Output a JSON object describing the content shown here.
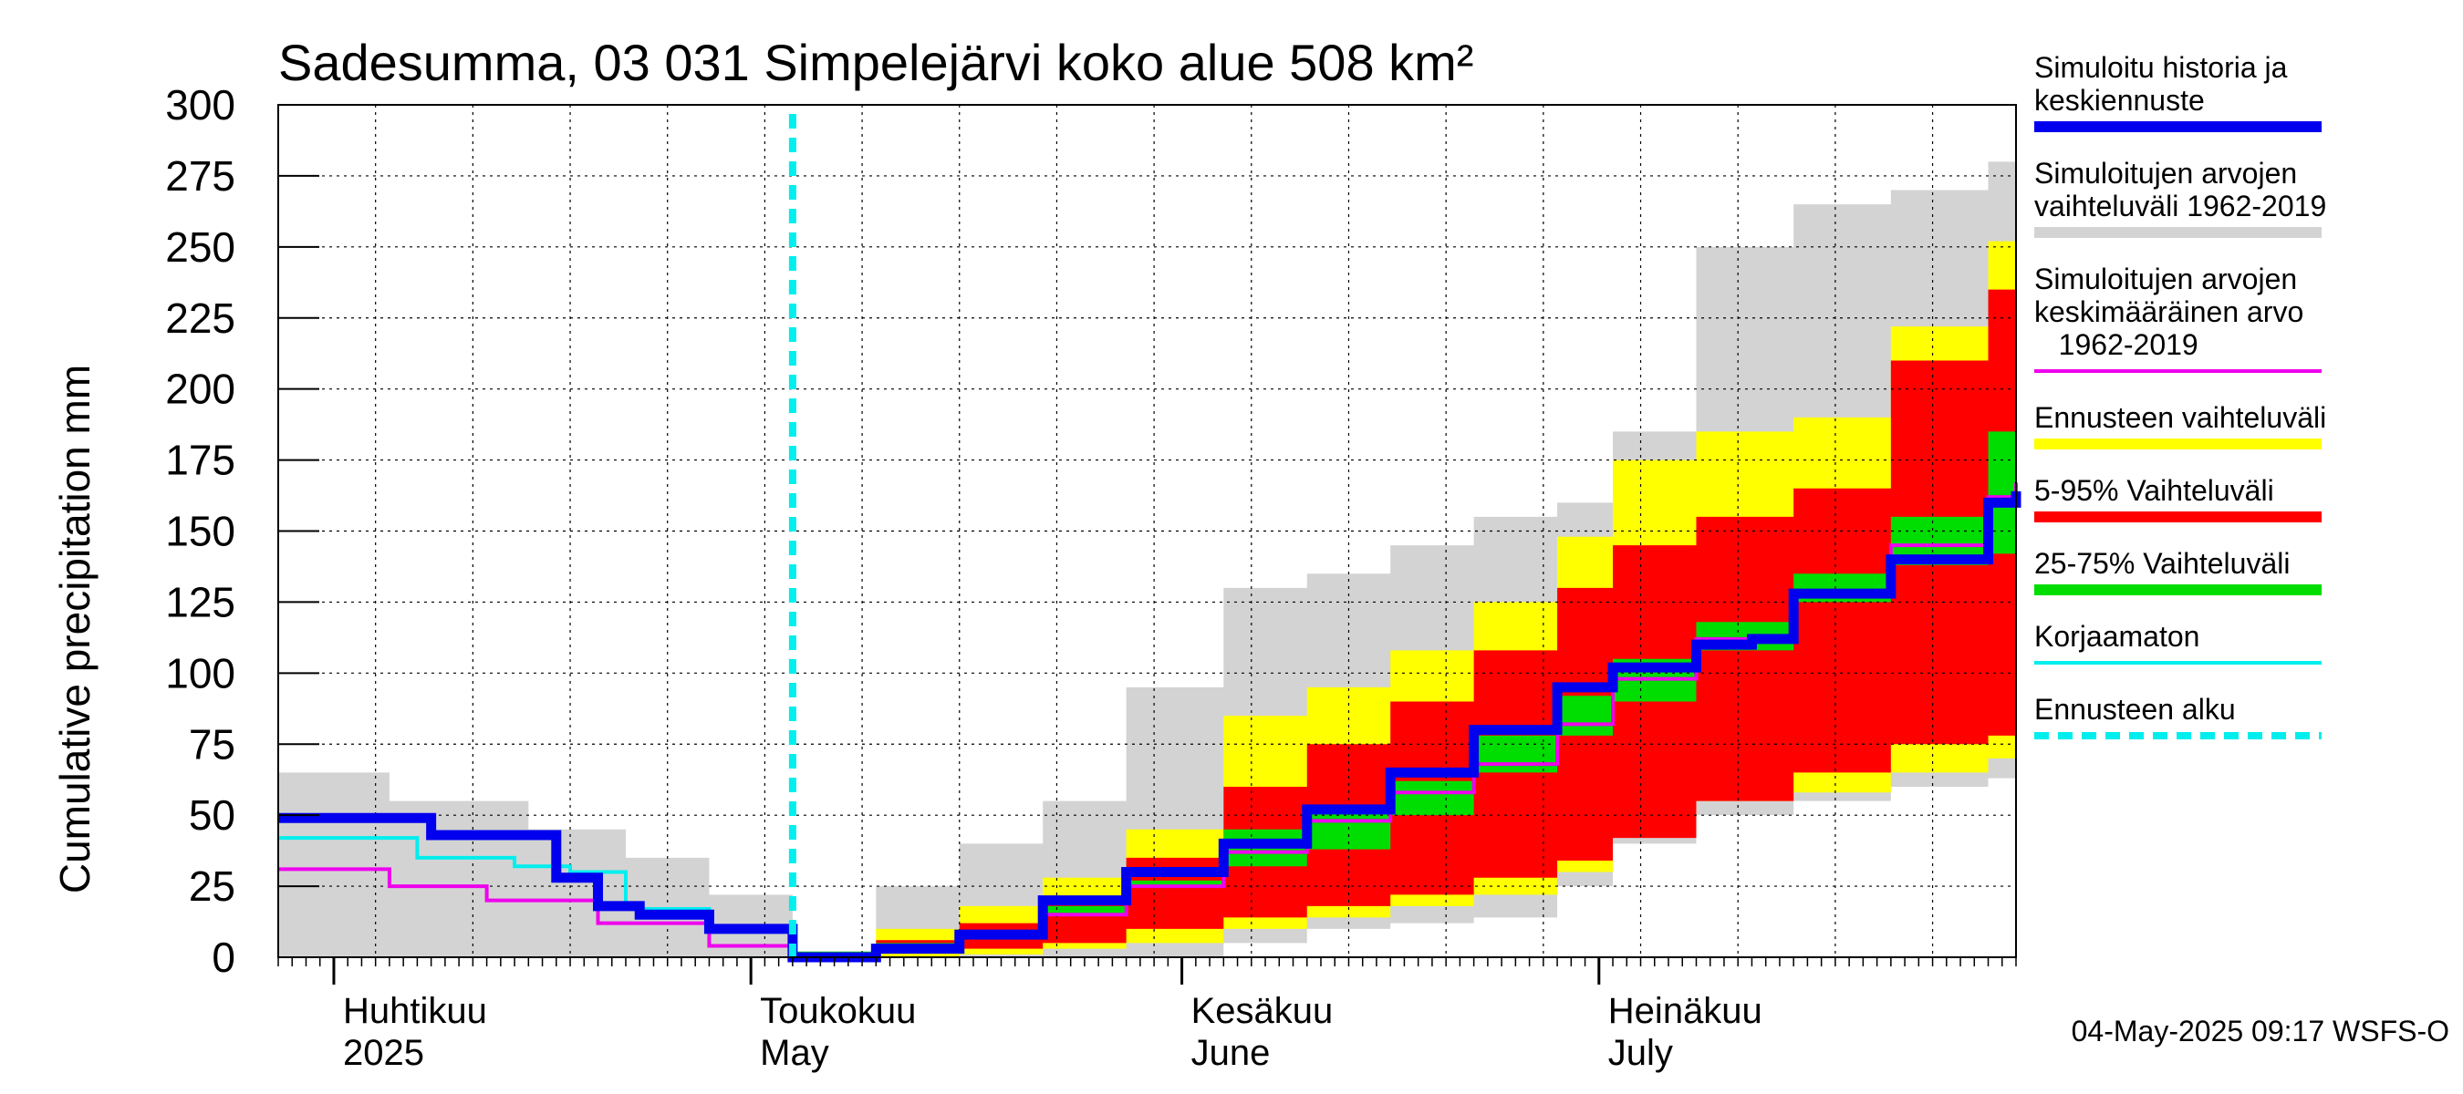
{
  "chart_data": {
    "type": "area",
    "title": "Sadesumma, 03 031 Simpelejärvi koko alue 508 km²",
    "ylabel": "Cumulative precipitation   mm",
    "ylim": [
      0,
      300
    ],
    "yticks": [
      0,
      25,
      50,
      75,
      100,
      125,
      150,
      175,
      200,
      225,
      250,
      275,
      300
    ],
    "xlim": [
      "2025-03-28",
      "2025-07-31"
    ],
    "month_labels": [
      {
        "date": "2025-04-01",
        "label1": "Huhtikuu",
        "label2": "2025"
      },
      {
        "date": "2025-05-01",
        "label1": "Toukokuu",
        "label2": "May"
      },
      {
        "date": "2025-06-01",
        "label1": "Kesäkuu",
        "label2": "June"
      },
      {
        "date": "2025-07-01",
        "label1": "Heinäkuu",
        "label2": "July"
      }
    ],
    "forecast_start": "2025-05-04",
    "series": [
      {
        "name": "Simuloitujen arvojen vaihteluväli 1962-2019",
        "kind": "band",
        "color": "#d3d3d3",
        "x": [
          "2025-03-28",
          "2025-04-05",
          "2025-04-15",
          "2025-04-22",
          "2025-04-28",
          "2025-05-04",
          "2025-05-10",
          "2025-05-16",
          "2025-05-22",
          "2025-05-28",
          "2025-06-04",
          "2025-06-10",
          "2025-06-16",
          "2025-06-22",
          "2025-06-28",
          "2025-07-02",
          "2025-07-08",
          "2025-07-15",
          "2025-07-22",
          "2025-07-29",
          "2025-07-31"
        ],
        "low": [
          0,
          0,
          0,
          0,
          0,
          0,
          0,
          0,
          0,
          0,
          0,
          5,
          10,
          12,
          14,
          25,
          40,
          50,
          55,
          60,
          63
        ],
        "high": [
          65,
          55,
          45,
          35,
          22,
          2,
          25,
          40,
          55,
          95,
          130,
          135,
          145,
          155,
          160,
          185,
          250,
          265,
          270,
          280,
          286
        ]
      },
      {
        "name": "Ennusteen vaihteluväli",
        "kind": "band",
        "color": "#ffff00",
        "x": [
          "2025-05-04",
          "2025-05-10",
          "2025-05-16",
          "2025-05-22",
          "2025-05-28",
          "2025-06-04",
          "2025-06-10",
          "2025-06-16",
          "2025-06-22",
          "2025-06-28",
          "2025-07-02",
          "2025-07-08",
          "2025-07-15",
          "2025-07-22",
          "2025-07-29",
          "2025-07-31"
        ],
        "low": [
          0,
          0,
          0,
          1,
          3,
          5,
          10,
          14,
          18,
          22,
          30,
          45,
          55,
          58,
          65,
          70
        ],
        "high": [
          0,
          10,
          18,
          28,
          45,
          85,
          95,
          108,
          125,
          148,
          175,
          185,
          190,
          222,
          252,
          270
        ]
      },
      {
        "name": "5-95% Vaihteluväli",
        "kind": "band",
        "color": "#ff0000",
        "x": [
          "2025-05-04",
          "2025-05-10",
          "2025-05-16",
          "2025-05-22",
          "2025-05-28",
          "2025-06-04",
          "2025-06-10",
          "2025-06-16",
          "2025-06-22",
          "2025-06-28",
          "2025-07-02",
          "2025-07-08",
          "2025-07-15",
          "2025-07-22",
          "2025-07-29",
          "2025-07-31"
        ],
        "low": [
          0,
          1,
          2,
          3,
          5,
          10,
          14,
          18,
          22,
          28,
          34,
          42,
          55,
          65,
          75,
          78
        ],
        "high": [
          0,
          6,
          12,
          20,
          35,
          60,
          75,
          90,
          108,
          130,
          145,
          155,
          165,
          210,
          235,
          250
        ]
      },
      {
        "name": "25-75% Vaihteluväli",
        "kind": "band",
        "color": "#00dd00",
        "x": [
          "2025-05-04",
          "2025-05-10",
          "2025-05-16",
          "2025-05-22",
          "2025-05-28",
          "2025-06-04",
          "2025-06-10",
          "2025-06-16",
          "2025-06-22",
          "2025-06-28",
          "2025-07-02",
          "2025-07-08",
          "2025-07-15",
          "2025-07-22",
          "2025-07-29",
          "2025-07-31"
        ],
        "low": [
          0,
          2,
          5,
          8,
          15,
          27,
          32,
          38,
          50,
          65,
          78,
          90,
          108,
          125,
          138,
          142
        ],
        "high": [
          0,
          4,
          9,
          18,
          25,
          45,
          52,
          62,
          78,
          92,
          105,
          118,
          135,
          155,
          185,
          210
        ]
      },
      {
        "name": "Simuloitujen arvojen keskimääräinen arvo 1962-2019",
        "kind": "line",
        "color": "#ee00ee",
        "x": [
          "2025-03-28",
          "2025-04-05",
          "2025-04-12",
          "2025-04-20",
          "2025-04-28",
          "2025-05-04",
          "2025-05-10",
          "2025-05-16",
          "2025-05-22",
          "2025-05-28",
          "2025-06-04",
          "2025-06-10",
          "2025-06-16",
          "2025-06-22",
          "2025-06-28",
          "2025-07-02",
          "2025-07-08",
          "2025-07-15",
          "2025-07-22",
          "2025-07-29",
          "2025-07-31"
        ],
        "y": [
          31,
          25,
          20,
          12,
          4,
          0,
          3,
          7,
          15,
          25,
          37,
          48,
          58,
          68,
          82,
          98,
          112,
          128,
          145,
          162,
          167
        ]
      },
      {
        "name": "Korjaamaton",
        "kind": "line",
        "color": "#00eeee",
        "x": [
          "2025-03-28",
          "2025-04-04",
          "2025-04-07",
          "2025-04-14",
          "2025-04-18",
          "2025-04-22",
          "2025-04-28",
          "2025-05-04"
        ],
        "y": [
          42,
          42,
          35,
          32,
          30,
          17,
          10,
          0
        ]
      },
      {
        "name": "Simuloitu historia ja keskiennuste",
        "kind": "line",
        "color": "#0000ee",
        "x": [
          "2025-03-28",
          "2025-04-05",
          "2025-04-08",
          "2025-04-15",
          "2025-04-17",
          "2025-04-20",
          "2025-04-23",
          "2025-04-28",
          "2025-05-01",
          "2025-05-04",
          "2025-05-10",
          "2025-05-16",
          "2025-05-22",
          "2025-05-28",
          "2025-06-04",
          "2025-06-10",
          "2025-06-16",
          "2025-06-22",
          "2025-06-28",
          "2025-07-02",
          "2025-07-08",
          "2025-07-12",
          "2025-07-15",
          "2025-07-22",
          "2025-07-29",
          "2025-07-31"
        ],
        "y": [
          49,
          49,
          43,
          43,
          28,
          18,
          15,
          10,
          10,
          0,
          3,
          8,
          20,
          30,
          40,
          52,
          65,
          80,
          95,
          102,
          110,
          112,
          128,
          140,
          160,
          164
        ]
      }
    ],
    "legend": {
      "placement": "right",
      "entries": [
        {
          "lines": [
            "Simuloitu historia ja",
            "keskiennuste"
          ],
          "color": "#0000ee",
          "style": "thick"
        },
        {
          "lines": [
            "Simuloitujen arvojen",
            "vaihteluväli 1962-2019"
          ],
          "color": "#d3d3d3",
          "style": "thick"
        },
        {
          "lines": [
            "Simuloitujen arvojen",
            "keskimääräinen arvo",
            "   1962-2019"
          ],
          "color": "#ee00ee",
          "style": "thin"
        },
        {
          "lines": [
            "Ennusteen vaihteluväli"
          ],
          "color": "#ffff00",
          "style": "thick"
        },
        {
          "lines": [
            "5-95% Vaihteluväli"
          ],
          "color": "#ff0000",
          "style": "thick"
        },
        {
          "lines": [
            "25-75% Vaihteluväli"
          ],
          "color": "#00dd00",
          "style": "thick"
        },
        {
          "lines": [
            "Korjaamaton"
          ],
          "color": "#00eeee",
          "style": "thin"
        },
        {
          "lines": [
            "Ennusteen alku"
          ],
          "color": "#00eeee",
          "style": "dashed"
        }
      ]
    },
    "footer": "04-May-2025 09:17 WSFS-O",
    "grid": true
  }
}
